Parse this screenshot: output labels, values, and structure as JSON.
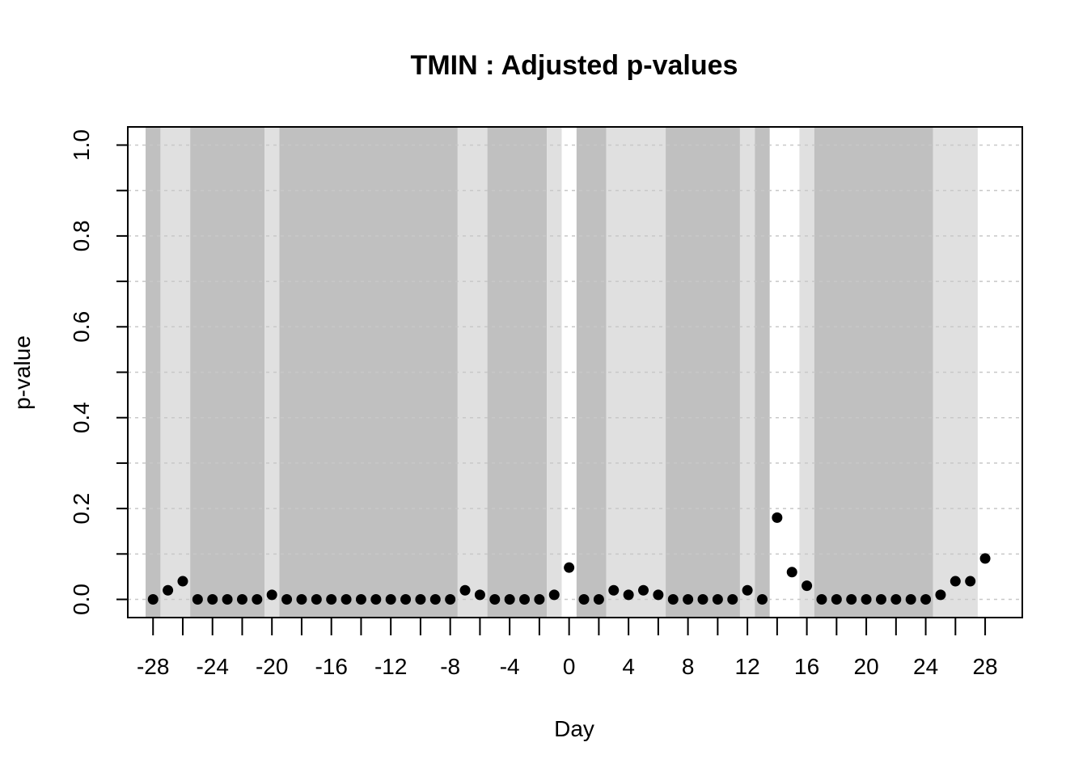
{
  "chart_data": {
    "type": "scatter",
    "title": "TMIN : Adjusted p-values",
    "xlabel": "Day",
    "ylabel": "p-value",
    "xlim": [
      -29.7,
      30.5
    ],
    "ylim": [
      -0.04,
      1.04
    ],
    "x_ticks": [
      "-28",
      "-24",
      "-20",
      "-16",
      "-12",
      "-8",
      "-4",
      "0",
      "4",
      "8",
      "12",
      "16",
      "20",
      "24",
      "28"
    ],
    "y_ticks": [
      "0.0",
      "0.2",
      "0.4",
      "0.6",
      "0.8",
      "1.0"
    ],
    "grid": "horizontal dashed",
    "colors": {
      "points": "#000000",
      "band_dark": "#c0c0c0",
      "band_light": "#e0e0e0",
      "grid": "#c8c8c8"
    },
    "bands": [
      {
        "from": -28.5,
        "to": -27.5,
        "shade": "dark"
      },
      {
        "from": -27.5,
        "to": -25.5,
        "shade": "light"
      },
      {
        "from": -25.5,
        "to": -20.5,
        "shade": "dark"
      },
      {
        "from": -20.5,
        "to": -19.5,
        "shade": "light"
      },
      {
        "from": -19.5,
        "to": -7.5,
        "shade": "dark"
      },
      {
        "from": -7.5,
        "to": -5.5,
        "shade": "light"
      },
      {
        "from": -5.5,
        "to": -1.5,
        "shade": "dark"
      },
      {
        "from": -1.5,
        "to": -0.5,
        "shade": "light"
      },
      {
        "from": 0.5,
        "to": 2.5,
        "shade": "dark"
      },
      {
        "from": 2.5,
        "to": 6.5,
        "shade": "light"
      },
      {
        "from": 6.5,
        "to": 11.5,
        "shade": "dark"
      },
      {
        "from": 11.5,
        "to": 12.5,
        "shade": "light"
      },
      {
        "from": 12.5,
        "to": 13.5,
        "shade": "dark"
      },
      {
        "from": 15.5,
        "to": 16.5,
        "shade": "light"
      },
      {
        "from": 16.5,
        "to": 24.5,
        "shade": "dark"
      },
      {
        "from": 24.5,
        "to": 27.5,
        "shade": "light"
      }
    ],
    "x": [
      -28,
      -27,
      -26,
      -25,
      -24,
      -23,
      -22,
      -21,
      -20,
      -19,
      -18,
      -17,
      -16,
      -15,
      -14,
      -13,
      -12,
      -11,
      -10,
      -9,
      -8,
      -7,
      -6,
      -5,
      -4,
      -3,
      -2,
      -1,
      0,
      1,
      2,
      3,
      4,
      5,
      6,
      7,
      8,
      9,
      10,
      11,
      12,
      13,
      14,
      15,
      16,
      17,
      18,
      19,
      20,
      21,
      22,
      23,
      24,
      25,
      26,
      27,
      28
    ],
    "y": [
      0.0,
      0.02,
      0.04,
      0.0,
      0.0,
      0.0,
      0.0,
      0.0,
      0.01,
      0.0,
      0.0,
      0.0,
      0.0,
      0.0,
      0.0,
      0.0,
      0.0,
      0.0,
      0.0,
      0.0,
      0.0,
      0.02,
      0.01,
      0.0,
      0.0,
      0.0,
      0.0,
      0.01,
      0.07,
      0.0,
      0.0,
      0.02,
      0.01,
      0.02,
      0.01,
      0.0,
      0.0,
      0.0,
      0.0,
      0.0,
      0.02,
      0.0,
      0.18,
      0.06,
      0.03,
      0.0,
      0.0,
      0.0,
      0.0,
      0.0,
      0.0,
      0.0,
      0.0,
      0.01,
      0.04,
      0.04,
      0.09
    ]
  }
}
